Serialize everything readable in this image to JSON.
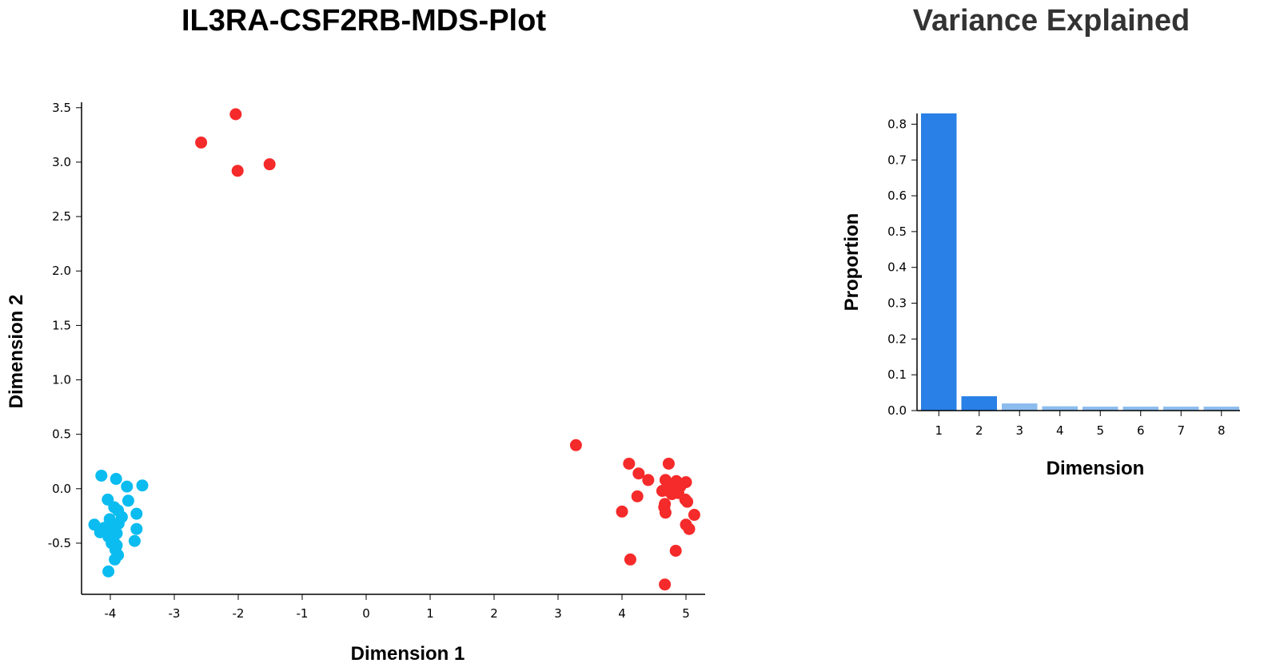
{
  "chart_data": [
    {
      "type": "scatter",
      "title": "IL3RA-CSF2RB-MDS-Plot",
      "xlabel": "Dimension 1",
      "ylabel": "Dimension 2",
      "xlim": [
        -4.45,
        5.3
      ],
      "ylim": [
        -0.97,
        3.55
      ],
      "xticks": [
        -4,
        -3,
        -2,
        -1,
        0,
        1,
        2,
        3,
        4,
        5
      ],
      "xtick_labels": [
        "-4",
        "-3",
        "-2",
        "-1",
        "0",
        "1",
        "2",
        "3",
        "4",
        "5"
      ],
      "yticks": [
        -0.5,
        0.0,
        0.5,
        1.0,
        1.5,
        2.0,
        2.5,
        3.0,
        3.5
      ],
      "ytick_labels": [
        "-0.5",
        "0.0",
        "0.5",
        "1.0",
        "1.5",
        "2.0",
        "2.5",
        "3.0",
        "3.5"
      ],
      "grid": false,
      "series": [
        {
          "color": "#0bbcf0",
          "points": [
            [
              -4.14,
              0.12
            ],
            [
              -3.91,
              0.09
            ],
            [
              -3.5,
              0.03
            ],
            [
              -3.74,
              0.02
            ],
            [
              -3.72,
              -0.11
            ],
            [
              -4.04,
              -0.1
            ],
            [
              -3.94,
              -0.17
            ],
            [
              -3.88,
              -0.2
            ],
            [
              -3.59,
              -0.23
            ],
            [
              -4.01,
              -0.28
            ],
            [
              -3.82,
              -0.26
            ],
            [
              -4.25,
              -0.33
            ],
            [
              -3.87,
              -0.32
            ],
            [
              -4.1,
              -0.36
            ],
            [
              -3.98,
              -0.37
            ],
            [
              -3.59,
              -0.37
            ],
            [
              -4.16,
              -0.4
            ],
            [
              -3.9,
              -0.41
            ],
            [
              -4.03,
              -0.44
            ],
            [
              -3.62,
              -0.48
            ],
            [
              -3.95,
              -0.48
            ],
            [
              -3.98,
              -0.5
            ],
            [
              -3.9,
              -0.52
            ],
            [
              -3.92,
              -0.56
            ],
            [
              -3.88,
              -0.61
            ],
            [
              -3.93,
              -0.65
            ],
            [
              -4.03,
              -0.76
            ]
          ]
        },
        {
          "color": "#f52a2a",
          "points": [
            [
              -2.04,
              3.44
            ],
            [
              -2.58,
              3.18
            ],
            [
              -1.51,
              2.98
            ],
            [
              -2.01,
              2.92
            ],
            [
              3.28,
              0.4
            ],
            [
              4.11,
              0.23
            ],
            [
              4.73,
              0.23
            ],
            [
              4.26,
              0.14
            ],
            [
              4.41,
              0.08
            ],
            [
              4.68,
              0.08
            ],
            [
              4.85,
              0.07
            ],
            [
              5.0,
              0.06
            ],
            [
              4.82,
              0.03
            ],
            [
              4.91,
              0.02
            ],
            [
              4.63,
              -0.02
            ],
            [
              4.72,
              -0.02
            ],
            [
              4.78,
              -0.05
            ],
            [
              4.88,
              -0.04
            ],
            [
              4.24,
              -0.07
            ],
            [
              4.99,
              -0.1
            ],
            [
              5.02,
              -0.12
            ],
            [
              4.67,
              -0.14
            ],
            [
              4.66,
              -0.17
            ],
            [
              4.0,
              -0.21
            ],
            [
              4.68,
              -0.22
            ],
            [
              5.13,
              -0.24
            ],
            [
              5.0,
              -0.33
            ],
            [
              5.05,
              -0.37
            ],
            [
              4.84,
              -0.57
            ],
            [
              4.13,
              -0.65
            ],
            [
              4.67,
              -0.88
            ]
          ]
        }
      ]
    },
    {
      "type": "bar",
      "title": "Variance Explained",
      "xlabel": "Dimension",
      "ylabel": "Proportion",
      "categories": [
        "1",
        "2",
        "3",
        "4",
        "5",
        "6",
        "7",
        "8"
      ],
      "values": [
        0.83,
        0.04,
        0.02,
        0.012,
        0.011,
        0.011,
        0.011,
        0.011
      ],
      "ylim": [
        0,
        0.83
      ],
      "yticks": [
        0.0,
        0.1,
        0.2,
        0.3,
        0.4,
        0.5,
        0.6,
        0.7,
        0.8
      ],
      "ytick_labels": [
        "0.0",
        "0.1",
        "0.2",
        "0.3",
        "0.4",
        "0.5",
        "0.6",
        "0.7",
        "0.8"
      ],
      "bar_colors": [
        "#2980e6",
        "#2980e6",
        "#8cbcee",
        "#8cbcee",
        "#8cbcee",
        "#8cbcee",
        "#8cbcee",
        "#8cbcee"
      ],
      "grid": false
    }
  ]
}
